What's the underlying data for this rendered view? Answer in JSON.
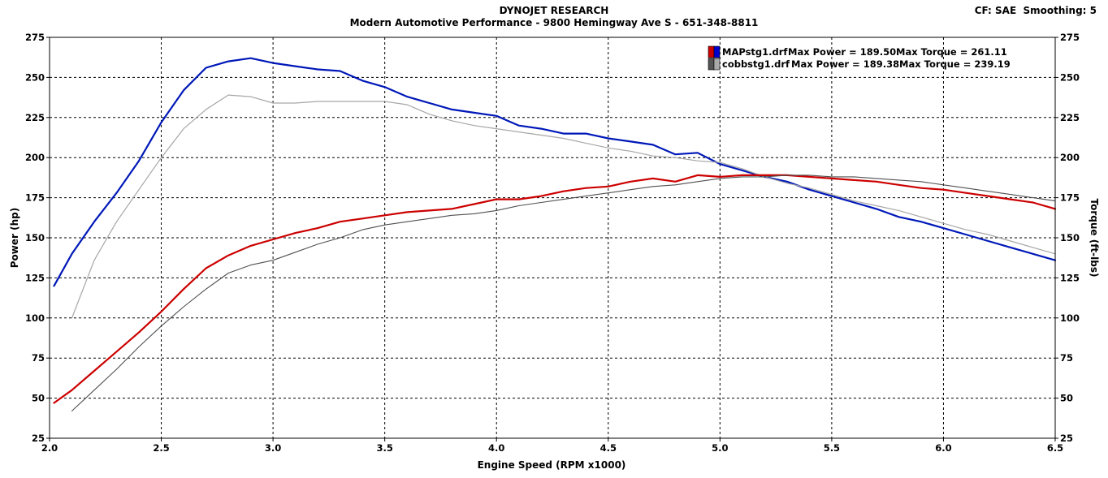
{
  "header": {
    "title": "DYNOJET RESEARCH",
    "subtitle": "Modern Automotive Performance - 9800 Hemingway Ave S - 651-348-8811",
    "cf_label": "CF: SAE",
    "smoothing_label": "Smoothing: 5"
  },
  "chart_data": {
    "type": "line",
    "xlabel": "Engine Speed (RPM x1000)",
    "ylabel_left": "Power (hp)",
    "ylabel_right": "Torque (ft-lbs)",
    "xlim": [
      2.0,
      6.5
    ],
    "ylim": [
      25,
      275
    ],
    "xticks": [
      "2.0",
      "2.5",
      "3.0",
      "3.5",
      "4.0",
      "4.5",
      "5.0",
      "5.5",
      "6.0",
      "6.5"
    ],
    "yticks": [
      "25",
      "50",
      "75",
      "100",
      "125",
      "150",
      "175",
      "200",
      "225",
      "250",
      "275"
    ],
    "grid": true,
    "legend_position": "top-right",
    "legend": [
      {
        "file": "MAPstg1.drf",
        "power_label": "Max Power = 189.50",
        "torque_label": "Max Torque = 261.11",
        "colors": [
          "#cc0000",
          "#0000cc"
        ]
      },
      {
        "file": "cobbstg1.drf",
        "power_label": "Max Power = 189.38",
        "torque_label": "Max Torque = 239.19",
        "colors": [
          "#555555",
          "#aaaaaa"
        ]
      }
    ],
    "series": [
      {
        "key": "map_torque",
        "color": "#0018b8",
        "width": 2.2,
        "x": [
          2.02,
          2.1,
          2.2,
          2.3,
          2.4,
          2.5,
          2.6,
          2.7,
          2.8,
          2.9,
          3.0,
          3.1,
          3.2,
          3.3,
          3.4,
          3.5,
          3.6,
          3.7,
          3.8,
          3.9,
          4.0,
          4.1,
          4.2,
          4.3,
          4.4,
          4.5,
          4.6,
          4.7,
          4.8,
          4.9,
          5.0,
          5.1,
          5.2,
          5.3,
          5.4,
          5.5,
          5.6,
          5.7,
          5.8,
          5.9,
          6.0,
          6.1,
          6.2,
          6.3,
          6.4,
          6.5
        ],
        "y": [
          120,
          140,
          160,
          178,
          198,
          222,
          242,
          256,
          260,
          262,
          259,
          257,
          255,
          254,
          248,
          244,
          238,
          234,
          230,
          228,
          226,
          220,
          218,
          215,
          215,
          212,
          210,
          208,
          202,
          203,
          196,
          192,
          188,
          185,
          180,
          176,
          172,
          168,
          163,
          160,
          156,
          152,
          148,
          144,
          140,
          136
        ]
      },
      {
        "key": "cobb_torque",
        "color": "#a6a6a6",
        "width": 1.2,
        "x": [
          2.1,
          2.2,
          2.3,
          2.4,
          2.5,
          2.6,
          2.7,
          2.8,
          2.9,
          3.0,
          3.1,
          3.2,
          3.3,
          3.4,
          3.5,
          3.6,
          3.7,
          3.8,
          3.9,
          4.0,
          4.1,
          4.2,
          4.3,
          4.4,
          4.5,
          4.6,
          4.7,
          4.8,
          4.9,
          5.0,
          5.1,
          5.2,
          5.3,
          5.4,
          5.5,
          5.6,
          5.7,
          5.8,
          5.9,
          6.0,
          6.1,
          6.2,
          6.3,
          6.4,
          6.5
        ],
        "y": [
          100,
          136,
          160,
          180,
          200,
          218,
          230,
          239,
          238,
          234,
          234,
          235,
          235,
          235,
          235,
          233,
          227,
          223,
          220,
          218,
          216,
          214,
          212,
          209,
          206,
          204,
          201,
          200,
          198,
          197,
          193,
          188,
          184,
          181,
          177,
          173,
          170,
          167,
          163,
          159,
          155,
          152,
          148,
          144,
          140
        ]
      },
      {
        "key": "map_power",
        "color": "#cc0000",
        "width": 2.2,
        "x": [
          2.02,
          2.1,
          2.2,
          2.3,
          2.4,
          2.5,
          2.6,
          2.7,
          2.8,
          2.9,
          3.0,
          3.1,
          3.2,
          3.3,
          3.4,
          3.5,
          3.6,
          3.7,
          3.8,
          3.9,
          4.0,
          4.1,
          4.2,
          4.3,
          4.4,
          4.5,
          4.6,
          4.7,
          4.8,
          4.9,
          5.0,
          5.1,
          5.2,
          5.3,
          5.4,
          5.5,
          5.6,
          5.7,
          5.8,
          5.9,
          6.0,
          6.1,
          6.2,
          6.3,
          6.4,
          6.5
        ],
        "y": [
          47,
          55,
          67,
          79,
          91,
          104,
          118,
          131,
          139,
          145,
          149,
          153,
          156,
          160,
          162,
          164,
          166,
          167,
          168,
          171,
          174,
          174,
          176,
          179,
          181,
          182,
          185,
          187,
          185,
          189,
          188,
          189,
          189,
          189,
          188,
          187,
          186,
          185,
          183,
          181,
          180,
          178,
          176,
          174,
          172,
          168
        ]
      },
      {
        "key": "cobb_power",
        "color": "#505050",
        "width": 1.1,
        "x": [
          2.1,
          2.2,
          2.3,
          2.4,
          2.5,
          2.6,
          2.7,
          2.8,
          2.9,
          3.0,
          3.1,
          3.2,
          3.3,
          3.4,
          3.5,
          3.6,
          3.7,
          3.8,
          3.9,
          4.0,
          4.1,
          4.2,
          4.3,
          4.4,
          4.5,
          4.6,
          4.7,
          4.8,
          4.9,
          5.0,
          5.1,
          5.2,
          5.3,
          5.4,
          5.5,
          5.6,
          5.7,
          5.8,
          5.9,
          6.0,
          6.1,
          6.2,
          6.3,
          6.4,
          6.5
        ],
        "y": [
          42,
          55,
          68,
          82,
          95,
          107,
          118,
          128,
          133,
          136,
          141,
          146,
          150,
          155,
          158,
          160,
          162,
          164,
          165,
          167,
          170,
          172,
          174,
          176,
          178,
          180,
          182,
          183,
          185,
          187,
          188,
          188,
          189,
          189,
          188,
          188,
          187,
          186,
          185,
          183,
          181,
          179,
          177,
          175,
          173
        ]
      }
    ]
  }
}
